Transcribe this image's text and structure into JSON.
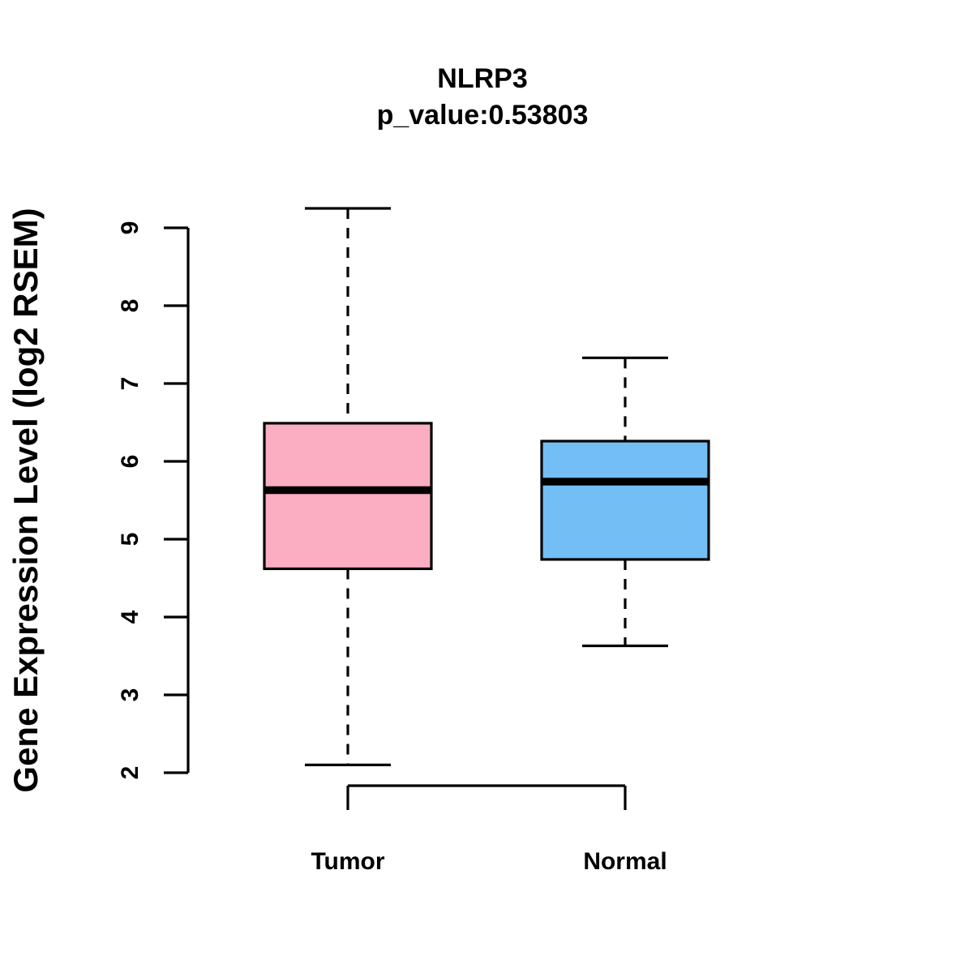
{
  "chart_data": {
    "type": "boxplot",
    "title": "NLRP3",
    "subtitle": "p_value:0.53803",
    "ylabel": "Gene Expression Level (log2 RSEM)",
    "xlabel": "",
    "categories": [
      "Tumor",
      "Normal"
    ],
    "yticks": [
      2,
      3,
      4,
      5,
      6,
      7,
      8,
      9
    ],
    "ylim": [
      2,
      9.25
    ],
    "grid": false,
    "legend": "none",
    "line_color": "#000000",
    "series": [
      {
        "name": "Tumor",
        "color": "#FBAEC1",
        "whisker_low": 2.1,
        "q1": 4.62,
        "median": 5.63,
        "q3": 6.49,
        "whisker_high": 9.25
      },
      {
        "name": "Normal",
        "color": "#73BEF5",
        "whisker_low": 3.63,
        "q1": 4.74,
        "median": 5.74,
        "q3": 6.26,
        "whisker_high": 7.33
      }
    ]
  }
}
